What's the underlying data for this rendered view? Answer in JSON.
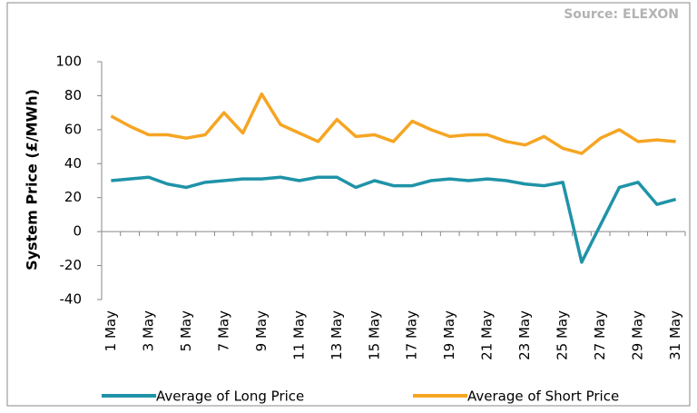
{
  "chart_data": {
    "type": "line",
    "source": "Source: ELEXON",
    "y_label": "System Price (£/MWh)",
    "categories": [
      "1 May",
      null,
      "3 May",
      null,
      "5 May",
      null,
      "7 May",
      null,
      "9 May",
      null,
      "11 May",
      null,
      "13 May",
      null,
      "15 May",
      null,
      "17 May",
      null,
      "19 May",
      null,
      "21 May",
      null,
      "23 May",
      null,
      "25 May",
      null,
      "27 May",
      null,
      "29 May",
      null,
      "31 May"
    ],
    "series": [
      {
        "name": "Average of Long Price",
        "color": "#1f93a8",
        "values": [
          30,
          31,
          32,
          28,
          26,
          29,
          30,
          31,
          31,
          32,
          30,
          32,
          32,
          26,
          30,
          27,
          27,
          30,
          31,
          30,
          31,
          30,
          28,
          27,
          29,
          -18,
          4,
          26,
          29,
          16,
          19
        ]
      },
      {
        "name": "Average of Short Price",
        "color": "#f6a523",
        "values": [
          68,
          62,
          57,
          57,
          55,
          57,
          70,
          58,
          81,
          63,
          58,
          53,
          66,
          56,
          57,
          53,
          65,
          60,
          56,
          57,
          57,
          53,
          51,
          56,
          49,
          46,
          55,
          60,
          53,
          54,
          53
        ]
      }
    ],
    "ylim": [
      -40,
      100
    ],
    "yticks": [
      -40,
      -20,
      0,
      20,
      40,
      60,
      80,
      100
    ],
    "legend": "bottom"
  }
}
